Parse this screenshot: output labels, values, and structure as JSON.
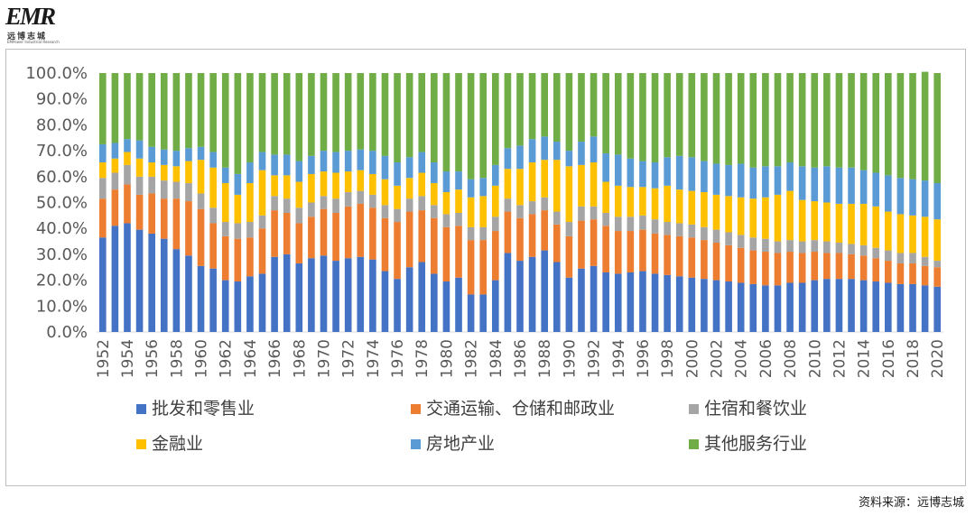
{
  "logo": {
    "mark": "EMR",
    "cn": "远博志城",
    "en": "EMPower Industrial Research"
  },
  "source": "资料来源：远博志城",
  "chart_data": {
    "type": "bar",
    "stacked": true,
    "percent": true,
    "title": "",
    "xlabel": "",
    "ylabel": "",
    "ylim": [
      0,
      100
    ],
    "y_ticks": [
      "0.0%",
      "10.0%",
      "20.0%",
      "30.0%",
      "40.0%",
      "50.0%",
      "60.0%",
      "70.0%",
      "80.0%",
      "90.0%",
      "100.0%"
    ],
    "x_tick_labels": [
      "1952",
      "1954",
      "1956",
      "1958",
      "1960",
      "1962",
      "1964",
      "1966",
      "1968",
      "1970",
      "1972",
      "1974",
      "1976",
      "1978",
      "1980",
      "1982",
      "1984",
      "1986",
      "1988",
      "1990",
      "1992",
      "1994",
      "1996",
      "1998",
      "2000",
      "2002",
      "2004",
      "2006",
      "2008",
      "2010",
      "2012",
      "2014",
      "2016",
      "2018",
      "2020"
    ],
    "categories": [
      "1952",
      "1953",
      "1954",
      "1955",
      "1956",
      "1957",
      "1958",
      "1959",
      "1960",
      "1961",
      "1962",
      "1963",
      "1964",
      "1965",
      "1966",
      "1967",
      "1968",
      "1969",
      "1970",
      "1971",
      "1972",
      "1973",
      "1974",
      "1975",
      "1976",
      "1977",
      "1978",
      "1979",
      "1980",
      "1981",
      "1982",
      "1983",
      "1984",
      "1985",
      "1986",
      "1987",
      "1988",
      "1989",
      "1990",
      "1991",
      "1992",
      "1993",
      "1994",
      "1995",
      "1996",
      "1997",
      "1998",
      "1999",
      "2000",
      "2001",
      "2002",
      "2003",
      "2004",
      "2005",
      "2006",
      "2007",
      "2008",
      "2009",
      "2010",
      "2011",
      "2012",
      "2013",
      "2014",
      "2015",
      "2016",
      "2017",
      "2018",
      "2019",
      "2020"
    ],
    "legend": [
      "批发和零售业",
      "交通运输、仓储和邮政业",
      "住宿和餐饮业",
      "金融业",
      "房地产业",
      "其他服务行业"
    ],
    "colors": [
      "#4472C4",
      "#ED7D31",
      "#A5A5A5",
      "#FFC000",
      "#5B9BD5",
      "#70AD47"
    ],
    "series": [
      {
        "name": "批发和零售业",
        "values": [
          36.5,
          41,
          42,
          39.5,
          38,
          36,
          32,
          29.5,
          25.5,
          24.5,
          20,
          19.5,
          21.5,
          22.5,
          29,
          30,
          26.5,
          28.5,
          29.5,
          27.5,
          28.5,
          29,
          28,
          23.5,
          20.5,
          25,
          27,
          22.5,
          19.5,
          21,
          14.5,
          14.5,
          20,
          30.5,
          27.5,
          29,
          31.5,
          27,
          21,
          24.5,
          25.5,
          23,
          22.5,
          23,
          23.5,
          22.5,
          22,
          21.5,
          21,
          20.5,
          20,
          19.5,
          19,
          18.5,
          18,
          18,
          19,
          19,
          20,
          20.5,
          20.5,
          20.5,
          20,
          19.5,
          19,
          18.5,
          18.5,
          18,
          17.5
        ]
      },
      {
        "name": "交通运输、仓储和邮政业",
        "values": [
          15,
          14,
          15,
          13.5,
          15.5,
          15.5,
          19.5,
          21,
          22,
          17.5,
          17,
          16.5,
          15,
          17.5,
          18,
          16,
          15.5,
          16,
          18,
          18.5,
          20,
          20.5,
          20,
          20.5,
          22,
          21.5,
          20,
          21.5,
          21,
          20,
          21,
          21,
          19,
          16,
          16.5,
          16.5,
          15.5,
          14.5,
          16,
          18.5,
          18,
          18,
          16.5,
          16,
          16,
          15.5,
          15.5,
          15.5,
          15.5,
          15,
          14.5,
          14,
          13.5,
          13,
          13,
          12.5,
          12,
          11.5,
          11,
          10,
          10,
          9.5,
          9.5,
          9,
          8.5,
          8,
          8,
          7.5,
          7.5
        ]
      },
      {
        "name": "住宿和餐饮业",
        "values": [
          8,
          6.5,
          7.5,
          7,
          6.5,
          7,
          6.5,
          7,
          6,
          6,
          5.5,
          6,
          6,
          5,
          5.5,
          5.5,
          6,
          5.5,
          5,
          5.5,
          5.5,
          5,
          5,
          5,
          5,
          5,
          5.5,
          5,
          5,
          5,
          5,
          5,
          5.5,
          5,
          5,
          5,
          5,
          5,
          5.5,
          5.5,
          5,
          5,
          5.5,
          5.5,
          5.5,
          5.5,
          5,
          5,
          5,
          5,
          5,
          5,
          5,
          5,
          5,
          4.5,
          4.5,
          4.5,
          4.5,
          4.5,
          4,
          4,
          4,
          4,
          4,
          4,
          4,
          3.5,
          2.5
        ]
      },
      {
        "name": "金融业",
        "values": [
          6,
          5.5,
          5,
          7,
          5.5,
          6,
          6,
          8.5,
          13,
          15.5,
          15,
          11,
          15,
          17.5,
          8,
          9,
          10,
          11,
          9.5,
          10,
          8,
          8,
          8,
          10,
          9,
          8,
          9,
          8.5,
          8.5,
          9,
          11.5,
          12,
          12,
          11.5,
          14,
          15,
          14.5,
          20,
          21.5,
          16,
          17,
          12,
          12,
          11.5,
          11,
          12,
          14,
          13,
          13,
          13.5,
          13.5,
          14,
          14.5,
          15,
          16,
          18,
          19,
          16,
          15,
          15,
          15,
          15.5,
          16,
          16,
          15,
          15,
          14.5,
          15.5,
          16
        ]
      },
      {
        "name": "房地产业",
        "values": [
          7,
          6,
          5,
          7,
          6,
          6,
          6,
          5,
          5,
          6,
          6,
          8,
          8,
          7,
          8,
          8,
          8,
          7,
          8,
          8,
          8,
          8,
          9,
          9,
          9,
          8,
          8,
          8,
          8,
          7,
          7,
          7,
          8,
          8,
          9,
          9,
          9,
          7,
          6,
          9,
          10,
          11,
          12,
          11,
          10,
          10,
          11,
          13,
          13,
          12,
          12,
          12,
          13,
          12,
          12,
          11,
          11,
          13,
          13,
          14,
          14,
          14,
          13,
          13,
          14,
          14,
          14,
          14,
          14
        ]
      },
      {
        "name": "其他服务行业",
        "values": [
          27.5,
          27,
          25.5,
          26,
          28.5,
          29.5,
          30,
          29,
          28.5,
          30.5,
          36.5,
          39,
          34.5,
          30.5,
          31.5,
          31.5,
          34,
          32,
          30,
          30.5,
          30,
          29.5,
          30,
          32,
          34.5,
          32.5,
          30.5,
          34.5,
          38,
          38,
          41,
          40.5,
          35.5,
          29,
          28,
          25.5,
          24.5,
          26.5,
          30,
          26.5,
          24.5,
          31,
          31.5,
          33,
          34,
          34.5,
          32.5,
          32,
          32.5,
          34,
          35,
          35.5,
          35,
          36.5,
          36,
          36,
          34.5,
          36,
          36.5,
          36,
          36.5,
          36.5,
          37.5,
          38.5,
          39.5,
          40.5,
          41,
          42,
          42.5
        ]
      }
    ]
  }
}
